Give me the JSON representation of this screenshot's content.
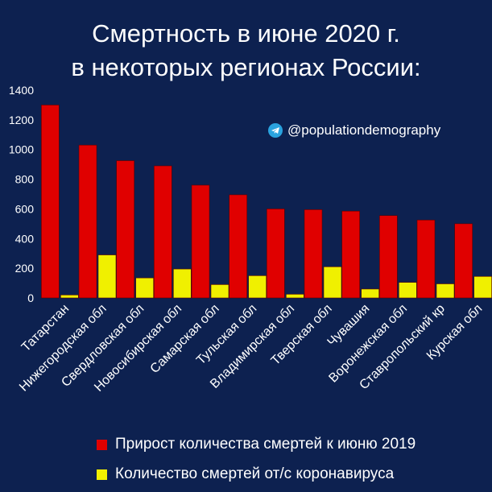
{
  "chart_data": {
    "type": "bar",
    "title_line1": "Смертность в июне 2020 г.",
    "title_line2": "в некоторых регионах России:",
    "watermark": "@populationdemography",
    "categories": [
      "Татарстан",
      "Нижегородская обл",
      "Свердловская обл",
      "Новосибирская обл",
      "Самарская обл",
      "Тульская обл",
      "Владимирская обл",
      "Тверская обл",
      "Чувашия",
      "Воронежская обл",
      "Ставропольский кр",
      "Курская обл"
    ],
    "series": [
      {
        "name": "Прирост количества смертей к июню 2019",
        "color": "#e00000",
        "values": [
          1300,
          1030,
          925,
          890,
          760,
          695,
          600,
          595,
          585,
          555,
          525,
          500
        ]
      },
      {
        "name": "Количество смертей от/с коронавируса",
        "color": "#f0f000",
        "values": [
          20,
          290,
          135,
          195,
          90,
          150,
          25,
          210,
          60,
          105,
          95,
          145
        ]
      }
    ],
    "ylim": [
      0,
      1400
    ],
    "yticks": [
      0,
      200,
      400,
      600,
      800,
      1000,
      1200,
      1400
    ],
    "grid": false,
    "legend_position": "bottom"
  }
}
